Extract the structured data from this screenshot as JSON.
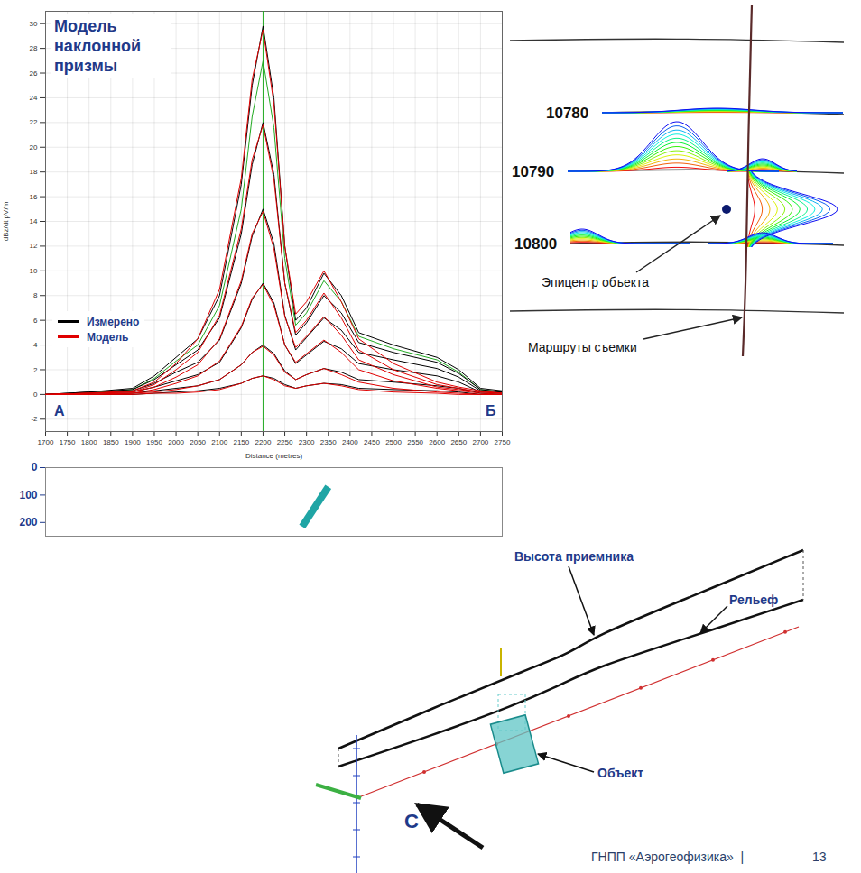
{
  "chart_data": [
    {
      "type": "line",
      "title": "Модель наклонной призмы",
      "x_label": "Distance (metres)",
      "y_label": "dBz/dt pV/m",
      "profile_ends": [
        "А",
        "Б"
      ],
      "x": [
        1700,
        1800,
        1900,
        1950,
        2000,
        2050,
        2100,
        2150,
        2175,
        2200,
        2225,
        2250,
        2275,
        2300,
        2340,
        2380,
        2420,
        2500,
        2600,
        2650,
        2700,
        2750
      ],
      "xlim": [
        1700,
        2750
      ],
      "xticks": [
        1700,
        1750,
        1800,
        1850,
        1900,
        1950,
        2000,
        2050,
        2100,
        2150,
        2200,
        2250,
        2300,
        2350,
        2400,
        2450,
        2500,
        2550,
        2600,
        2650,
        2700,
        2750
      ],
      "ylim": [
        -3,
        31
      ],
      "yticks": [
        -2,
        0,
        2,
        4,
        6,
        8,
        10,
        12,
        14,
        16,
        18,
        20,
        22,
        24,
        26,
        28,
        30
      ],
      "grid": true,
      "legend": "bottom-left",
      "reference_line": {
        "x": 2200,
        "color": "#22aa22"
      },
      "series": [
        {
          "name": "Измерено",
          "color": "#000000",
          "colors": [
            "#000000",
            "#22aa22",
            "#000000",
            "#000000",
            "#000000",
            "#000000",
            "#000000"
          ],
          "curves": [
            [
              0,
              0.2,
              0.5,
              1.5,
              3,
              4.5,
              8,
              17,
              25,
              29.8,
              24,
              12,
              6,
              7,
              9.8,
              8,
              5,
              4,
              3,
              2,
              0.5,
              0.3
            ],
            [
              0,
              0.1,
              0.4,
              1.3,
              2.7,
              4,
              7.2,
              15,
              22.5,
              27,
              21.6,
              11,
              5.6,
              6.6,
              9.2,
              7.5,
              4.7,
              3.7,
              2.8,
              1.8,
              0.4,
              0.2
            ],
            [
              0,
              0.2,
              0.4,
              1.2,
              2.4,
              3.6,
              6.2,
              13,
              18.6,
              22,
              17.8,
              9,
              4.8,
              5.8,
              8,
              6.6,
              4.2,
              3.4,
              2.6,
              1.7,
              0.4,
              0.2
            ],
            [
              0,
              0.1,
              0.3,
              0.9,
              1.8,
              2.6,
              4.4,
              9,
              12.8,
              15,
              12.2,
              6.4,
              3.6,
              4.6,
              6.2,
              5.2,
              3.4,
              2.8,
              2.1,
              1.4,
              0.3,
              0.2
            ],
            [
              0,
              0.1,
              0.2,
              0.6,
              1.1,
              1.6,
              2.6,
              5.4,
              7.7,
              9,
              7.4,
              4,
              2.5,
              3.2,
              4.3,
              3.7,
              2.5,
              2,
              1.5,
              1,
              0.2,
              0.1
            ],
            [
              0,
              0,
              0.1,
              0.3,
              0.5,
              0.7,
              1.2,
              2.4,
              3.4,
              4,
              3.3,
              1.9,
              1.2,
              1.6,
              2.1,
              1.8,
              1.2,
              1,
              0.7,
              0.5,
              0.1,
              0
            ],
            [
              0,
              0,
              0,
              0.1,
              0.2,
              0.3,
              0.5,
              0.9,
              1.3,
              1.5,
              1.3,
              0.8,
              0.5,
              0.7,
              0.9,
              0.8,
              0.5,
              0.4,
              0.3,
              0.2,
              0,
              0
            ]
          ]
        },
        {
          "name": "Модель",
          "color": "#e00000",
          "curves": [
            [
              0,
              0.1,
              0.3,
              1,
              2.5,
              4.5,
              8.5,
              17.5,
              25.5,
              29.5,
              23.5,
              12,
              6.5,
              7.5,
              10,
              7.5,
              4.5,
              2.5,
              1,
              0.6,
              0.3,
              0.1
            ],
            [
              0,
              0.1,
              0.2,
              0.8,
              2,
              3.4,
              6.4,
              13.4,
              19,
              21.8,
              17.4,
              9,
              5,
              6,
              8.2,
              6.2,
              3.6,
              2,
              0.8,
              0.5,
              0.2,
              0.1
            ],
            [
              0,
              0.1,
              0.2,
              0.6,
              1.4,
              2.4,
              4.5,
              9.2,
              13,
              14.8,
              11.8,
              6.3,
              3.8,
              4.7,
              6.3,
              4.8,
              2.8,
              1.6,
              0.6,
              0.4,
              0.2,
              0.1
            ],
            [
              0,
              0,
              0.1,
              0.4,
              0.9,
              1.5,
              2.7,
              5.5,
              7.8,
              8.9,
              7.2,
              4,
              2.6,
              3.3,
              4.4,
              3.4,
              2,
              1.1,
              0.5,
              0.3,
              0.1,
              0
            ],
            [
              0,
              0,
              0.1,
              0.2,
              0.4,
              0.7,
              1.2,
              2.4,
              3.4,
              3.9,
              3.2,
              1.8,
              1.2,
              1.6,
              2.1,
              1.6,
              1,
              0.5,
              0.2,
              0.1,
              0,
              0
            ],
            [
              0,
              0,
              0,
              0.1,
              0.1,
              0.2,
              0.4,
              0.9,
              1.3,
              1.5,
              1.2,
              0.7,
              0.5,
              0.7,
              0.9,
              0.7,
              0.4,
              0.2,
              0.1,
              0,
              0,
              0
            ]
          ]
        }
      ]
    },
    {
      "type": "section",
      "xlim": [
        1700,
        2750
      ],
      "ylim": [
        0,
        250
      ],
      "yticks": [
        0,
        100,
        200
      ],
      "tick_labels": "y",
      "prism": {
        "x": [
          2350,
          2290
        ],
        "depth": [
          70,
          215
        ]
      },
      "color": "#1fa5a5"
    }
  ],
  "survey_map": {
    "line_labels": [
      "10780",
      "10790",
      "10800"
    ],
    "epicenter_label": "Эпицентр объекта",
    "routes_label": "Маршруты съемки"
  },
  "diagram": {
    "receiver_label": "Высота приемника",
    "relief_label": "Рельеф",
    "object_label": "Объект",
    "view_label": "С"
  },
  "footer": {
    "org": "ГНПП «Аэрогеофизика»  |",
    "page": "13"
  }
}
